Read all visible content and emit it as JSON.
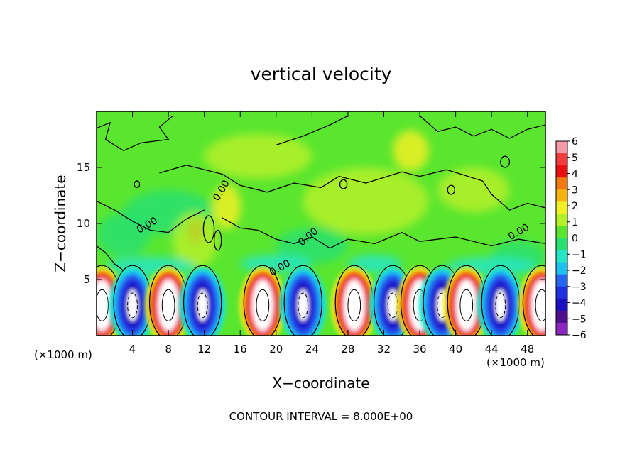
{
  "chart_data": {
    "type": "heatmap",
    "title": "vertical velocity",
    "xlabel": "X−coordinate",
    "ylabel": "Z−coordinate",
    "x_unit_left": "(×1000 m)",
    "x_unit_right": "(×1000 m)",
    "xlim": [
      0,
      50
    ],
    "ylim": [
      0,
      20
    ],
    "x_ticks": [
      4,
      8,
      12,
      16,
      20,
      24,
      28,
      32,
      36,
      40,
      44,
      48
    ],
    "y_ticks": [
      5,
      10,
      15
    ],
    "colorbar": {
      "ticks": [
        "6",
        "5",
        "4",
        "3",
        "2",
        "1",
        "0",
        "−1",
        "−2",
        "−3",
        "−4",
        "−5",
        "−6"
      ],
      "colors": [
        "#f49aa8",
        "#f23c3c",
        "#e81010",
        "#f07a10",
        "#f7b20e",
        "#f0f024",
        "#b4f028",
        "#5ae62e",
        "#28e06e",
        "#24e6c6",
        "#1ec0f0",
        "#2466f0",
        "#2030e0",
        "#1a10c0",
        "#50108c",
        "#8c28be"
      ]
    },
    "contour_labels": [
      "0.00",
      "0.00",
      "0.00",
      "0.00",
      "0.00"
    ],
    "lower_cells": [
      {
        "x": 0.6,
        "sign": "up"
      },
      {
        "x": 4.0,
        "sign": "down"
      },
      {
        "x": 8.0,
        "sign": "up"
      },
      {
        "x": 11.8,
        "sign": "down"
      },
      {
        "x": 18.5,
        "sign": "up"
      },
      {
        "x": 23.0,
        "sign": "down"
      },
      {
        "x": 28.7,
        "sign": "up"
      },
      {
        "x": 33.0,
        "sign": "down"
      },
      {
        "x": 36.0,
        "sign": "up"
      },
      {
        "x": 38.5,
        "sign": "down"
      },
      {
        "x": 41.2,
        "sign": "up"
      },
      {
        "x": 45.0,
        "sign": "down"
      },
      {
        "x": 49.6,
        "sign": "up"
      }
    ]
  },
  "footer": {
    "contour_interval": "CONTOUR INTERVAL = 8.000E+00"
  }
}
